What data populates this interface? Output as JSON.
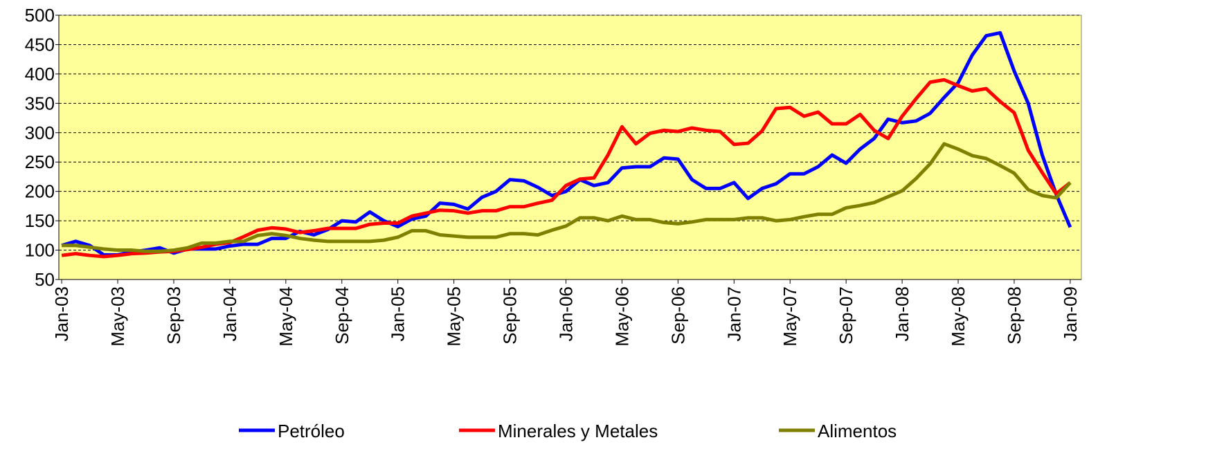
{
  "chart_data": {
    "type": "line",
    "categories": [
      "Jan-03",
      null,
      null,
      null,
      "May-03",
      null,
      null,
      null,
      "Sep-03",
      null,
      null,
      null,
      "Jan-04",
      null,
      null,
      null,
      "May-04",
      null,
      null,
      null,
      "Sep-04",
      null,
      null,
      null,
      "Jan-05",
      null,
      null,
      null,
      "May-05",
      null,
      null,
      null,
      "Sep-05",
      null,
      null,
      null,
      "Jan-06",
      null,
      null,
      null,
      "May-06",
      null,
      null,
      null,
      "Sep-06",
      null,
      null,
      null,
      "Jan-07",
      null,
      null,
      null,
      "May-07",
      null,
      null,
      null,
      "Sep-07",
      null,
      null,
      null,
      "Jan-08",
      null,
      null,
      null,
      "May-08",
      null,
      null,
      null,
      "Sep-08",
      null,
      null,
      null,
      "Jan-09"
    ],
    "series": [
      {
        "name": "Petróleo",
        "color": "#0000ff",
        "values": [
          108,
          115,
          108,
          92,
          92,
          97,
          100,
          104,
          95,
          102,
          102,
          102,
          107,
          110,
          110,
          120,
          120,
          132,
          126,
          135,
          150,
          148,
          165,
          150,
          140,
          153,
          158,
          180,
          178,
          170,
          190,
          200,
          220,
          218,
          207,
          193,
          200,
          220,
          210,
          215,
          240,
          242,
          242,
          257,
          255,
          220,
          205,
          205,
          215,
          188,
          205,
          213,
          230,
          230,
          242,
          262,
          248,
          272,
          290,
          323,
          317,
          320,
          333,
          360,
          385,
          432,
          465,
          470,
          405,
          350,
          262,
          195,
          139
        ]
      },
      {
        "name": "Minerales y Metales",
        "color": "#ff0000",
        "values": [
          91,
          94,
          91,
          89,
          91,
          94,
          95,
          97,
          98,
          101,
          105,
          110,
          113,
          123,
          134,
          138,
          136,
          130,
          133,
          137,
          137,
          137,
          144,
          146,
          146,
          158,
          163,
          168,
          167,
          163,
          167,
          167,
          174,
          174,
          180,
          185,
          210,
          221,
          223,
          262,
          310,
          281,
          299,
          304,
          302,
          308,
          304,
          302,
          280,
          282,
          303,
          341,
          343,
          328,
          335,
          315,
          315,
          331,
          304,
          290,
          328,
          358,
          386,
          390,
          380,
          371,
          375,
          353,
          334,
          270,
          232,
          196,
          215
        ]
      },
      {
        "name": "Alimentos",
        "color": "#808000",
        "values": [
          108,
          108,
          105,
          102,
          100,
          100,
          98,
          98,
          100,
          104,
          112,
          112,
          115,
          115,
          125,
          128,
          125,
          120,
          117,
          115,
          115,
          115,
          115,
          117,
          122,
          133,
          133,
          126,
          124,
          122,
          122,
          122,
          128,
          128,
          126,
          134,
          141,
          155,
          155,
          150,
          158,
          152,
          152,
          147,
          145,
          148,
          152,
          152,
          152,
          155,
          155,
          150,
          152,
          157,
          161,
          161,
          172,
          176,
          181,
          191,
          201,
          222,
          247,
          281,
          272,
          261,
          256,
          244,
          231,
          203,
          193,
          189,
          215
        ]
      }
    ],
    "ylim": [
      50,
      500
    ],
    "yticks": [
      50,
      100,
      150,
      200,
      250,
      300,
      350,
      400,
      450,
      500
    ],
    "grid": true,
    "legend": "bottom"
  }
}
